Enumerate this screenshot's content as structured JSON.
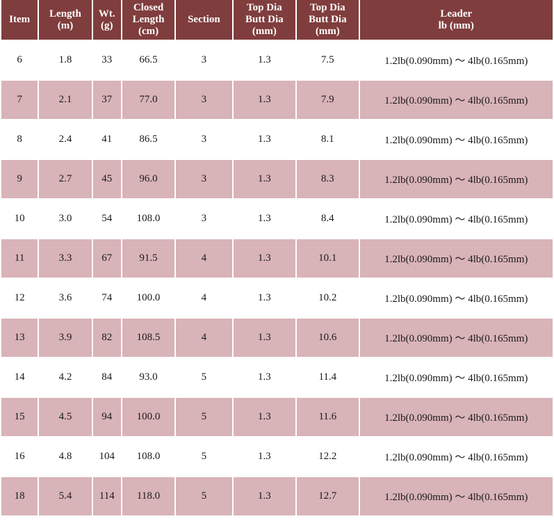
{
  "headers": [
    {
      "lines": [
        "Item"
      ]
    },
    {
      "lines": [
        "Length",
        "(m)"
      ]
    },
    {
      "lines": [
        "Wt.",
        "(g)"
      ]
    },
    {
      "lines": [
        "Closed",
        "Length",
        "(cm)"
      ]
    },
    {
      "lines": [
        "Section"
      ]
    },
    {
      "lines": [
        "Top Dia",
        "Butt Dia",
        "(mm)"
      ]
    },
    {
      "lines": [
        "Top Dia",
        "Butt Dia",
        "(mm)"
      ]
    },
    {
      "lines": [
        "Leader",
        "lb (mm)"
      ]
    }
  ],
  "rows": [
    [
      "6",
      "1.8",
      "33",
      "66.5",
      "3",
      "1.3",
      "7.5",
      "1.2lb(0.090mm) ～ 4lb(0.165mm)"
    ],
    [
      "7",
      "2.1",
      "37",
      "77.0",
      "3",
      "1.3",
      "7.9",
      "1.2lb(0.090mm) ～ 4lb(0.165mm)"
    ],
    [
      "8",
      "2.4",
      "41",
      "86.5",
      "3",
      "1.3",
      "8.1",
      "1.2lb(0.090mm) ～ 4lb(0.165mm)"
    ],
    [
      "9",
      "2.7",
      "45",
      "96.0",
      "3",
      "1.3",
      "8.3",
      "1.2lb(0.090mm) ～ 4lb(0.165mm)"
    ],
    [
      "10",
      "3.0",
      "54",
      "108.0",
      "3",
      "1.3",
      "8.4",
      "1.2lb(0.090mm) ～ 4lb(0.165mm)"
    ],
    [
      "11",
      "3.3",
      "67",
      "91.5",
      "4",
      "1.3",
      "10.1",
      "1.2lb(0.090mm) ～ 4lb(0.165mm)"
    ],
    [
      "12",
      "3.6",
      "74",
      "100.0",
      "4",
      "1.3",
      "10.2",
      "1.2lb(0.090mm) ～ 4lb(0.165mm)"
    ],
    [
      "13",
      "3.9",
      "82",
      "108.5",
      "4",
      "1.3",
      "10.6",
      "1.2lb(0.090mm) ～ 4lb(0.165mm)"
    ],
    [
      "14",
      "4.2",
      "84",
      "93.0",
      "5",
      "1.3",
      "11.4",
      "1.2lb(0.090mm) ～ 4lb(0.165mm)"
    ],
    [
      "15",
      "4.5",
      "94",
      "100.0",
      "5",
      "1.3",
      "11.6",
      "1.2lb(0.090mm) ～ 4lb(0.165mm)"
    ],
    [
      "16",
      "4.8",
      "104",
      "108.0",
      "5",
      "1.3",
      "12.2",
      "1.2lb(0.090mm) ～ 4lb(0.165mm)"
    ],
    [
      "18",
      "5.4",
      "114",
      "118.0",
      "5",
      "1.3",
      "12.7",
      "1.2lb(0.090mm) ～ 4lb(0.165mm)"
    ]
  ],
  "colors": {
    "header_bg": "#803d3d",
    "header_text": "#ffffff",
    "shaded_row": "#d8b3b8",
    "plain_row": "#ffffff"
  }
}
